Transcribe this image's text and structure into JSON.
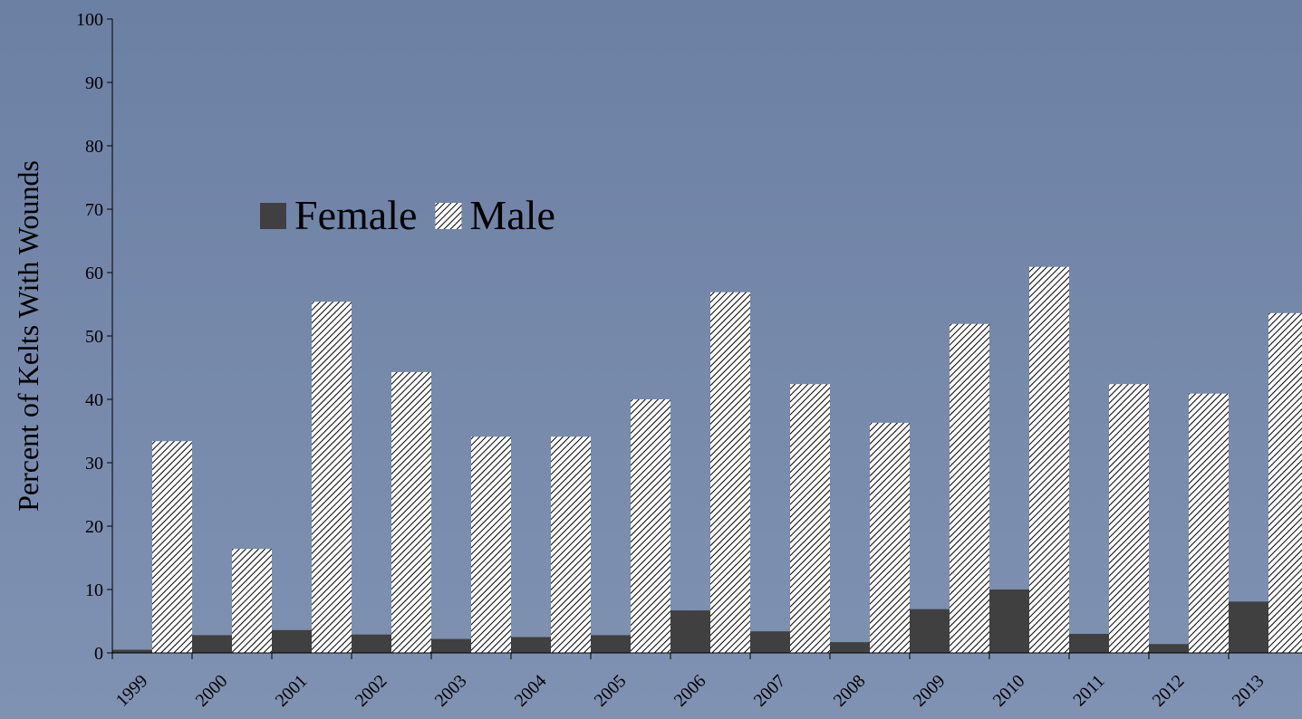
{
  "chart_data": {
    "type": "bar",
    "y_label": "Percent of Kelts With Wounds",
    "categories": [
      "1999",
      "2000",
      "2001",
      "2002",
      "2003",
      "2004",
      "2005",
      "2006",
      "2007",
      "2008",
      "2009",
      "2010",
      "2011",
      "2012",
      "2013"
    ],
    "series": [
      {
        "name": "Female",
        "color": "#404040",
        "hatch": false,
        "values": [
          0.5,
          2.8,
          3.6,
          2.9,
          2.2,
          2.5,
          2.8,
          6.7,
          3.4,
          1.7,
          6.9,
          10.0,
          3.0,
          1.4,
          8.1
        ]
      },
      {
        "name": "Male",
        "color": "#ffffff",
        "hatch": true,
        "values": [
          33.4,
          16.4,
          55.4,
          44.3,
          34.1,
          34.1,
          40.0,
          56.9,
          42.4,
          36.3,
          51.9,
          60.9,
          42.4,
          40.9,
          53.6
        ]
      }
    ],
    "ylim": [
      0,
      100
    ],
    "yticks": [
      0,
      10,
      20,
      30,
      40,
      50,
      60,
      70,
      80,
      90,
      100
    ],
    "grid": false
  }
}
